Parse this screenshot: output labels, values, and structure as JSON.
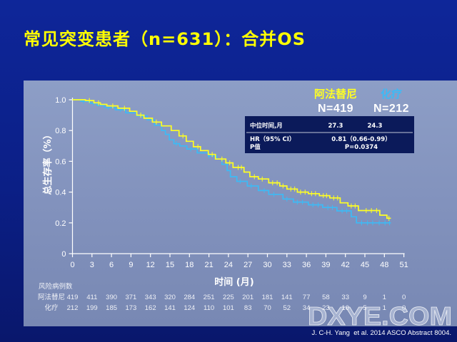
{
  "slide": {
    "title": "常见突变患者（n=631）：合并OS",
    "title_color": "#ffff00",
    "footer": "J. C-H. Yang  et al. 2014 ASCO Abstract 8004.",
    "watermark": "DXYE.COM"
  },
  "chart_data": {
    "type": "line",
    "step": true,
    "xlabel": "时间 (月)",
    "ylabel": "总生存率（%）",
    "xlim": [
      0,
      51
    ],
    "ylim": [
      0,
      1
    ],
    "xticks": [
      0,
      3,
      6,
      9,
      12,
      15,
      18,
      21,
      24,
      27,
      30,
      33,
      36,
      39,
      42,
      45,
      48,
      51
    ],
    "yticks": [
      0,
      0.2,
      0.4,
      0.6,
      0.8,
      1.0
    ],
    "ytick_labels": [
      "0",
      "0.2",
      "0.4",
      "0.6",
      "0.8",
      "1.0"
    ],
    "grid": false,
    "legend_position": "top-right",
    "series": [
      {
        "name": "阿法替尼",
        "n_label": "N=419",
        "median": "27.3",
        "color": "#ffff22",
        "end": 49.0,
        "points": [
          [
            0,
            1.0
          ],
          [
            2.0,
            0.995
          ],
          [
            3.3,
            0.98
          ],
          [
            4.3,
            0.97
          ],
          [
            5.3,
            0.96
          ],
          [
            7.0,
            0.945
          ],
          [
            8.8,
            0.925
          ],
          [
            9.9,
            0.9
          ],
          [
            11.0,
            0.88
          ],
          [
            12.3,
            0.855
          ],
          [
            13.7,
            0.83
          ],
          [
            15.2,
            0.8
          ],
          [
            16.4,
            0.765
          ],
          [
            17.5,
            0.73
          ],
          [
            18.6,
            0.695
          ],
          [
            19.7,
            0.67
          ],
          [
            20.9,
            0.645
          ],
          [
            22.0,
            0.615
          ],
          [
            23.6,
            0.59
          ],
          [
            24.7,
            0.56
          ],
          [
            26.4,
            0.53
          ],
          [
            27.3,
            0.5
          ],
          [
            28.6,
            0.485
          ],
          [
            30.2,
            0.46
          ],
          [
            31.9,
            0.44
          ],
          [
            33.0,
            0.42
          ],
          [
            34.6,
            0.4
          ],
          [
            36.3,
            0.39
          ],
          [
            38.0,
            0.377
          ],
          [
            39.6,
            0.362
          ],
          [
            41.2,
            0.33
          ],
          [
            42.4,
            0.31
          ],
          [
            44.0,
            0.28
          ],
          [
            47.3,
            0.25
          ],
          [
            48.4,
            0.23
          ]
        ],
        "censored": [
          2.6,
          4.0,
          6.2,
          8.0,
          10.5,
          12.9,
          17.0,
          19.3,
          21.5,
          23.0,
          24.2,
          25.5,
          26.0,
          28.0,
          29.2,
          30.8,
          31.5,
          32.4,
          33.6,
          34.2,
          35.1,
          35.8,
          36.8,
          37.4,
          38.6,
          39.1,
          40.2,
          40.8,
          42.9,
          43.5,
          45.2,
          46.0,
          46.8,
          48.7
        ]
      },
      {
        "name": "化疗",
        "n_label": "N=212",
        "median": "24.3",
        "color": "#3dbaf5",
        "end": 49.0,
        "points": [
          [
            0,
            1.0
          ],
          [
            1.3,
            0.99
          ],
          [
            2.7,
            0.977
          ],
          [
            3.8,
            0.962
          ],
          [
            4.9,
            0.95
          ],
          [
            6.6,
            0.935
          ],
          [
            8.2,
            0.915
          ],
          [
            9.9,
            0.895
          ],
          [
            11.5,
            0.87
          ],
          [
            12.6,
            0.835
          ],
          [
            13.7,
            0.8
          ],
          [
            14.3,
            0.775
          ],
          [
            14.9,
            0.74
          ],
          [
            15.6,
            0.715
          ],
          [
            16.5,
            0.7
          ],
          [
            17.6,
            0.68
          ],
          [
            19.2,
            0.655
          ],
          [
            20.9,
            0.635
          ],
          [
            22.2,
            0.615
          ],
          [
            23.0,
            0.58
          ],
          [
            23.8,
            0.54
          ],
          [
            24.3,
            0.5
          ],
          [
            25.3,
            0.47
          ],
          [
            26.9,
            0.44
          ],
          [
            28.6,
            0.41
          ],
          [
            30.2,
            0.385
          ],
          [
            32.4,
            0.355
          ],
          [
            34.0,
            0.335
          ],
          [
            36.3,
            0.317
          ],
          [
            38.5,
            0.3
          ],
          [
            40.7,
            0.278
          ],
          [
            42.9,
            0.24
          ],
          [
            43.7,
            0.2
          ]
        ],
        "censored": [
          1.7,
          3.2,
          5.5,
          7.4,
          10.8,
          16.0,
          18.2,
          21.0,
          25.8,
          27.5,
          29.5,
          31.0,
          33.0,
          34.6,
          35.4,
          37.0,
          37.8,
          39.3,
          40.0,
          41.5,
          42.2,
          44.5,
          45.4,
          46.2,
          47.2,
          48.1,
          48.8
        ]
      }
    ],
    "stats": {
      "median_label": "中位时间,月",
      "hr_label": "HR（95% CI）",
      "hr_value": "0.81（0.66-0.99）",
      "p_label": "P值",
      "p_value": "P=0.0374"
    },
    "risk_table": {
      "title": "风险病例数",
      "rows": [
        {
          "label": "阿法替尼",
          "values": [
            419,
            411,
            390,
            371,
            343,
            320,
            284,
            251,
            225,
            201,
            181,
            141,
            77,
            58,
            33,
            9,
            1,
            0
          ]
        },
        {
          "label": "化疗",
          "values": [
            212,
            199,
            185,
            173,
            162,
            141,
            124,
            110,
            101,
            83,
            70,
            52,
            34,
            23,
            10,
            5,
            1,
            0
          ]
        }
      ]
    }
  }
}
